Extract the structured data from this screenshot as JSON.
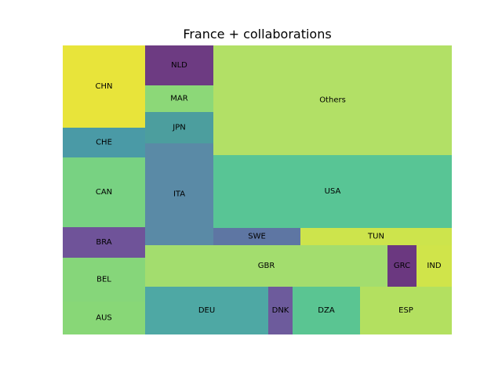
{
  "chart_data": {
    "type": "treemap",
    "title": "France + collaborations",
    "cells": [
      {
        "label": "CHN",
        "color": "#e8e43a",
        "region": [
          0,
          105,
          0,
          105
        ]
      },
      {
        "label": "CHE",
        "color": "#4a9aa6",
        "region": [
          0,
          105,
          105,
          143
        ]
      },
      {
        "label": "CAN",
        "color": "#78d282",
        "region": [
          0,
          105,
          143,
          232
        ]
      },
      {
        "label": "BRA",
        "color": "#6f5399",
        "region": [
          0,
          105,
          232,
          271
        ]
      },
      {
        "label": "BEL",
        "color": "#86d67a",
        "region": [
          0,
          105,
          271,
          327
        ]
      },
      {
        "label": "AUS",
        "color": "#88d777",
        "region": [
          0,
          105,
          327,
          369
        ]
      },
      {
        "label": "NLD",
        "color": "#6d3b82",
        "region": [
          105,
          192,
          0,
          51
        ]
      },
      {
        "label": "MAR",
        "color": "#8cd878",
        "region": [
          105,
          192,
          51,
          85
        ]
      },
      {
        "label": "JPN",
        "color": "#4c9e9e",
        "region": [
          105,
          192,
          85,
          125
        ]
      },
      {
        "label": "ITA",
        "color": "#5a8aa6",
        "region": [
          105,
          192,
          125,
          255
        ]
      },
      {
        "label": "Others",
        "color": "#b2e066",
        "region": [
          192,
          496,
          0,
          140
        ]
      },
      {
        "label": "USA",
        "color": "#58c595",
        "region": [
          192,
          496,
          140,
          233
        ]
      },
      {
        "label": "SWE",
        "color": "#5e76a3",
        "region": [
          192,
          303,
          233,
          255
        ]
      },
      {
        "label": "TUN",
        "color": "#cde44c",
        "region": [
          303,
          496,
          233,
          255
        ]
      },
      {
        "label": "GBR",
        "color": "#a3dd6e",
        "region": [
          105,
          414,
          255,
          308
        ]
      },
      {
        "label": "GRC",
        "color": "#6b3880",
        "region": [
          414,
          451,
          255,
          308
        ]
      },
      {
        "label": "IND",
        "color": "#d0e44a",
        "region": [
          451,
          496,
          255,
          308
        ]
      },
      {
        "label": "DEU",
        "color": "#4ea8a4",
        "region": [
          105,
          262,
          308,
          369
        ]
      },
      {
        "label": "DNK",
        "color": "#6d5b9c",
        "region": [
          262,
          293,
          308,
          369
        ]
      },
      {
        "label": "DZA",
        "color": "#5ac592",
        "region": [
          293,
          379,
          308,
          369
        ]
      },
      {
        "label": "ESP",
        "color": "#b3e060",
        "region": [
          379,
          496,
          308,
          369
        ]
      }
    ]
  }
}
